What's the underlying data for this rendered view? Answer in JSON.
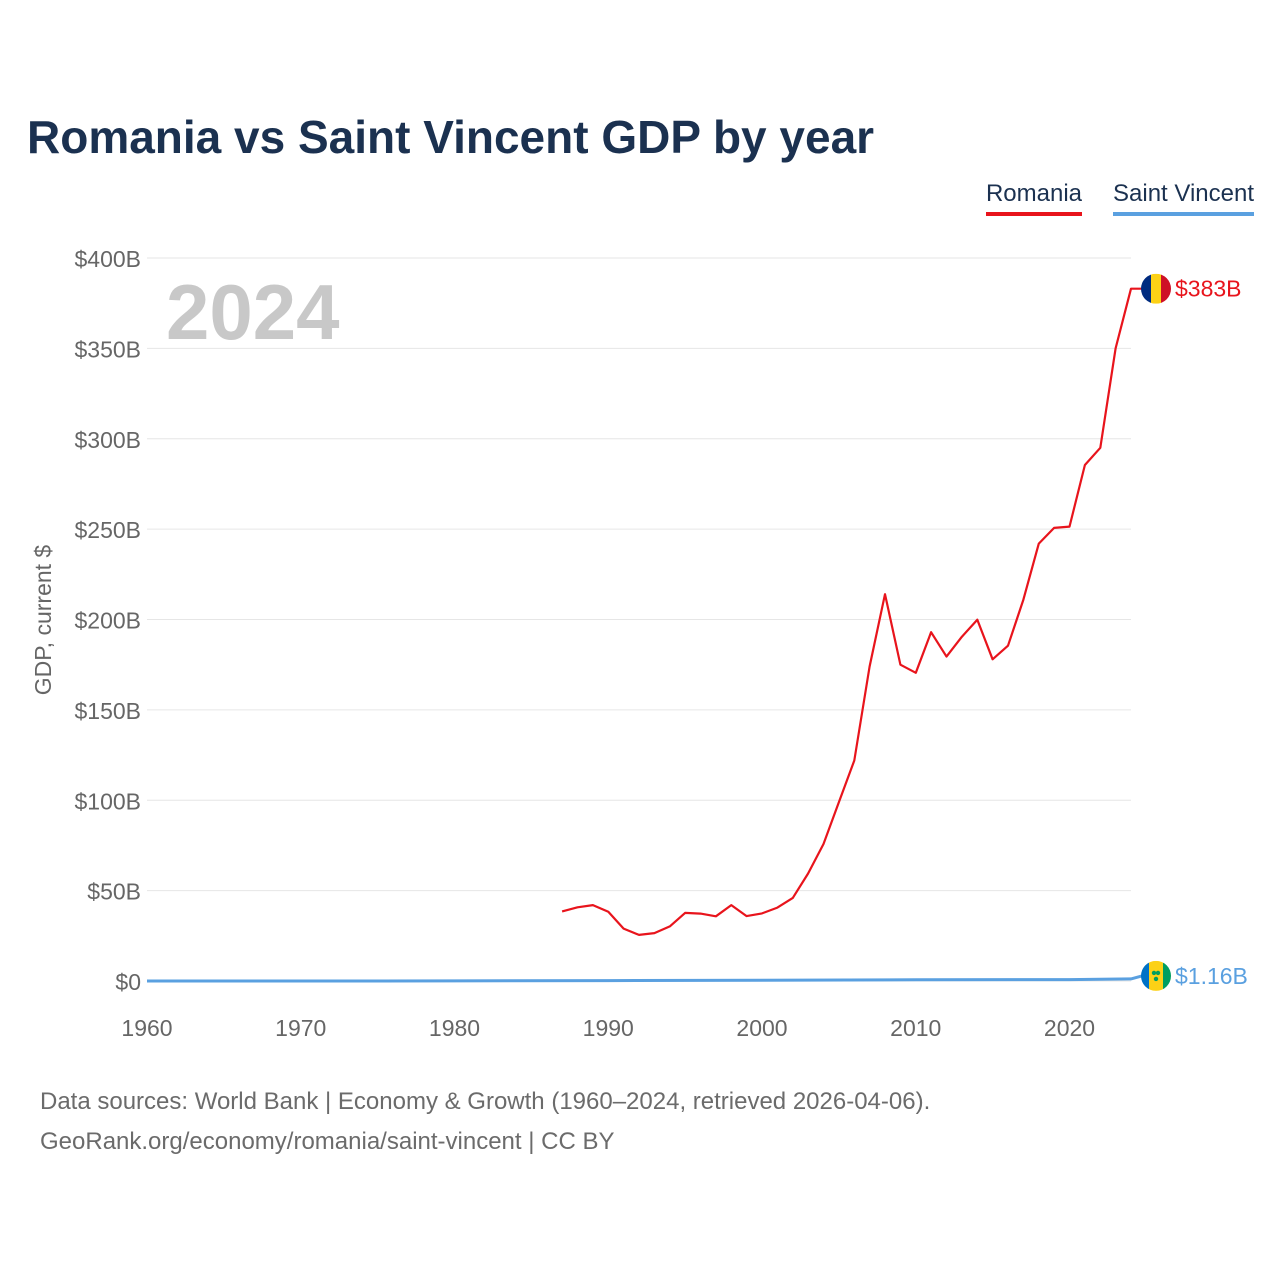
{
  "chart_data": {
    "type": "line",
    "title": "Romania vs Saint Vincent GDP by year",
    "ylabel": "GDP, current $",
    "xlabel": "",
    "ylim": [
      0,
      400
    ],
    "xlim": [
      1960,
      2024
    ],
    "y_ticks": [
      "$0",
      "$50B",
      "$100B",
      "$150B",
      "$200B",
      "$250B",
      "$300B",
      "$350B",
      "$400B"
    ],
    "y_tick_values": [
      0,
      50,
      100,
      150,
      200,
      250,
      300,
      350,
      400
    ],
    "x_ticks": [
      "1960",
      "1970",
      "1980",
      "1990",
      "2000",
      "2010",
      "2020"
    ],
    "x_tick_values": [
      1960,
      1970,
      1980,
      1990,
      2000,
      2010,
      2020
    ],
    "year_label": "2024",
    "grid": true,
    "legend_position": "top-right",
    "series": [
      {
        "name": "Romania",
        "color": "#e8141c",
        "end_label": "$383B",
        "flag": "romania-flag",
        "x": [
          1987,
          1988,
          1989,
          1990,
          1991,
          1992,
          1993,
          1994,
          1995,
          1996,
          1997,
          1998,
          1999,
          2000,
          2001,
          2002,
          2003,
          2004,
          2005,
          2006,
          2007,
          2008,
          2009,
          2010,
          2011,
          2012,
          2013,
          2014,
          2015,
          2016,
          2017,
          2018,
          2019,
          2020,
          2021,
          2022,
          2023,
          2024
        ],
        "values": [
          38.5,
          40.8,
          42,
          38.3,
          29,
          25.5,
          26.5,
          30.2,
          37.7,
          37.3,
          35.8,
          42,
          35.9,
          37.4,
          40.6,
          46,
          59.5,
          75.8,
          99,
          122,
          174,
          214,
          175,
          170.5,
          193,
          179.5,
          190.5,
          199.9,
          178,
          185.5,
          211,
          242,
          250.7,
          251.4,
          285.5,
          295,
          350,
          383
        ]
      },
      {
        "name": "Saint Vincent",
        "color": "#5aa0e0",
        "end_label": "$1.16B",
        "flag": "saint-vincent-flag",
        "x": [
          1960,
          1970,
          1980,
          1990,
          2000,
          2010,
          2020,
          2024
        ],
        "values": [
          0.01,
          0.02,
          0.05,
          0.2,
          0.4,
          0.68,
          0.8,
          1.16
        ]
      }
    ]
  },
  "footer": {
    "line1": "Data sources: World Bank | Economy & Growth (1960–2024, retrieved 2026-04-06).",
    "line2": "GeoRank.org/economy/romania/saint-vincent | CC BY"
  }
}
